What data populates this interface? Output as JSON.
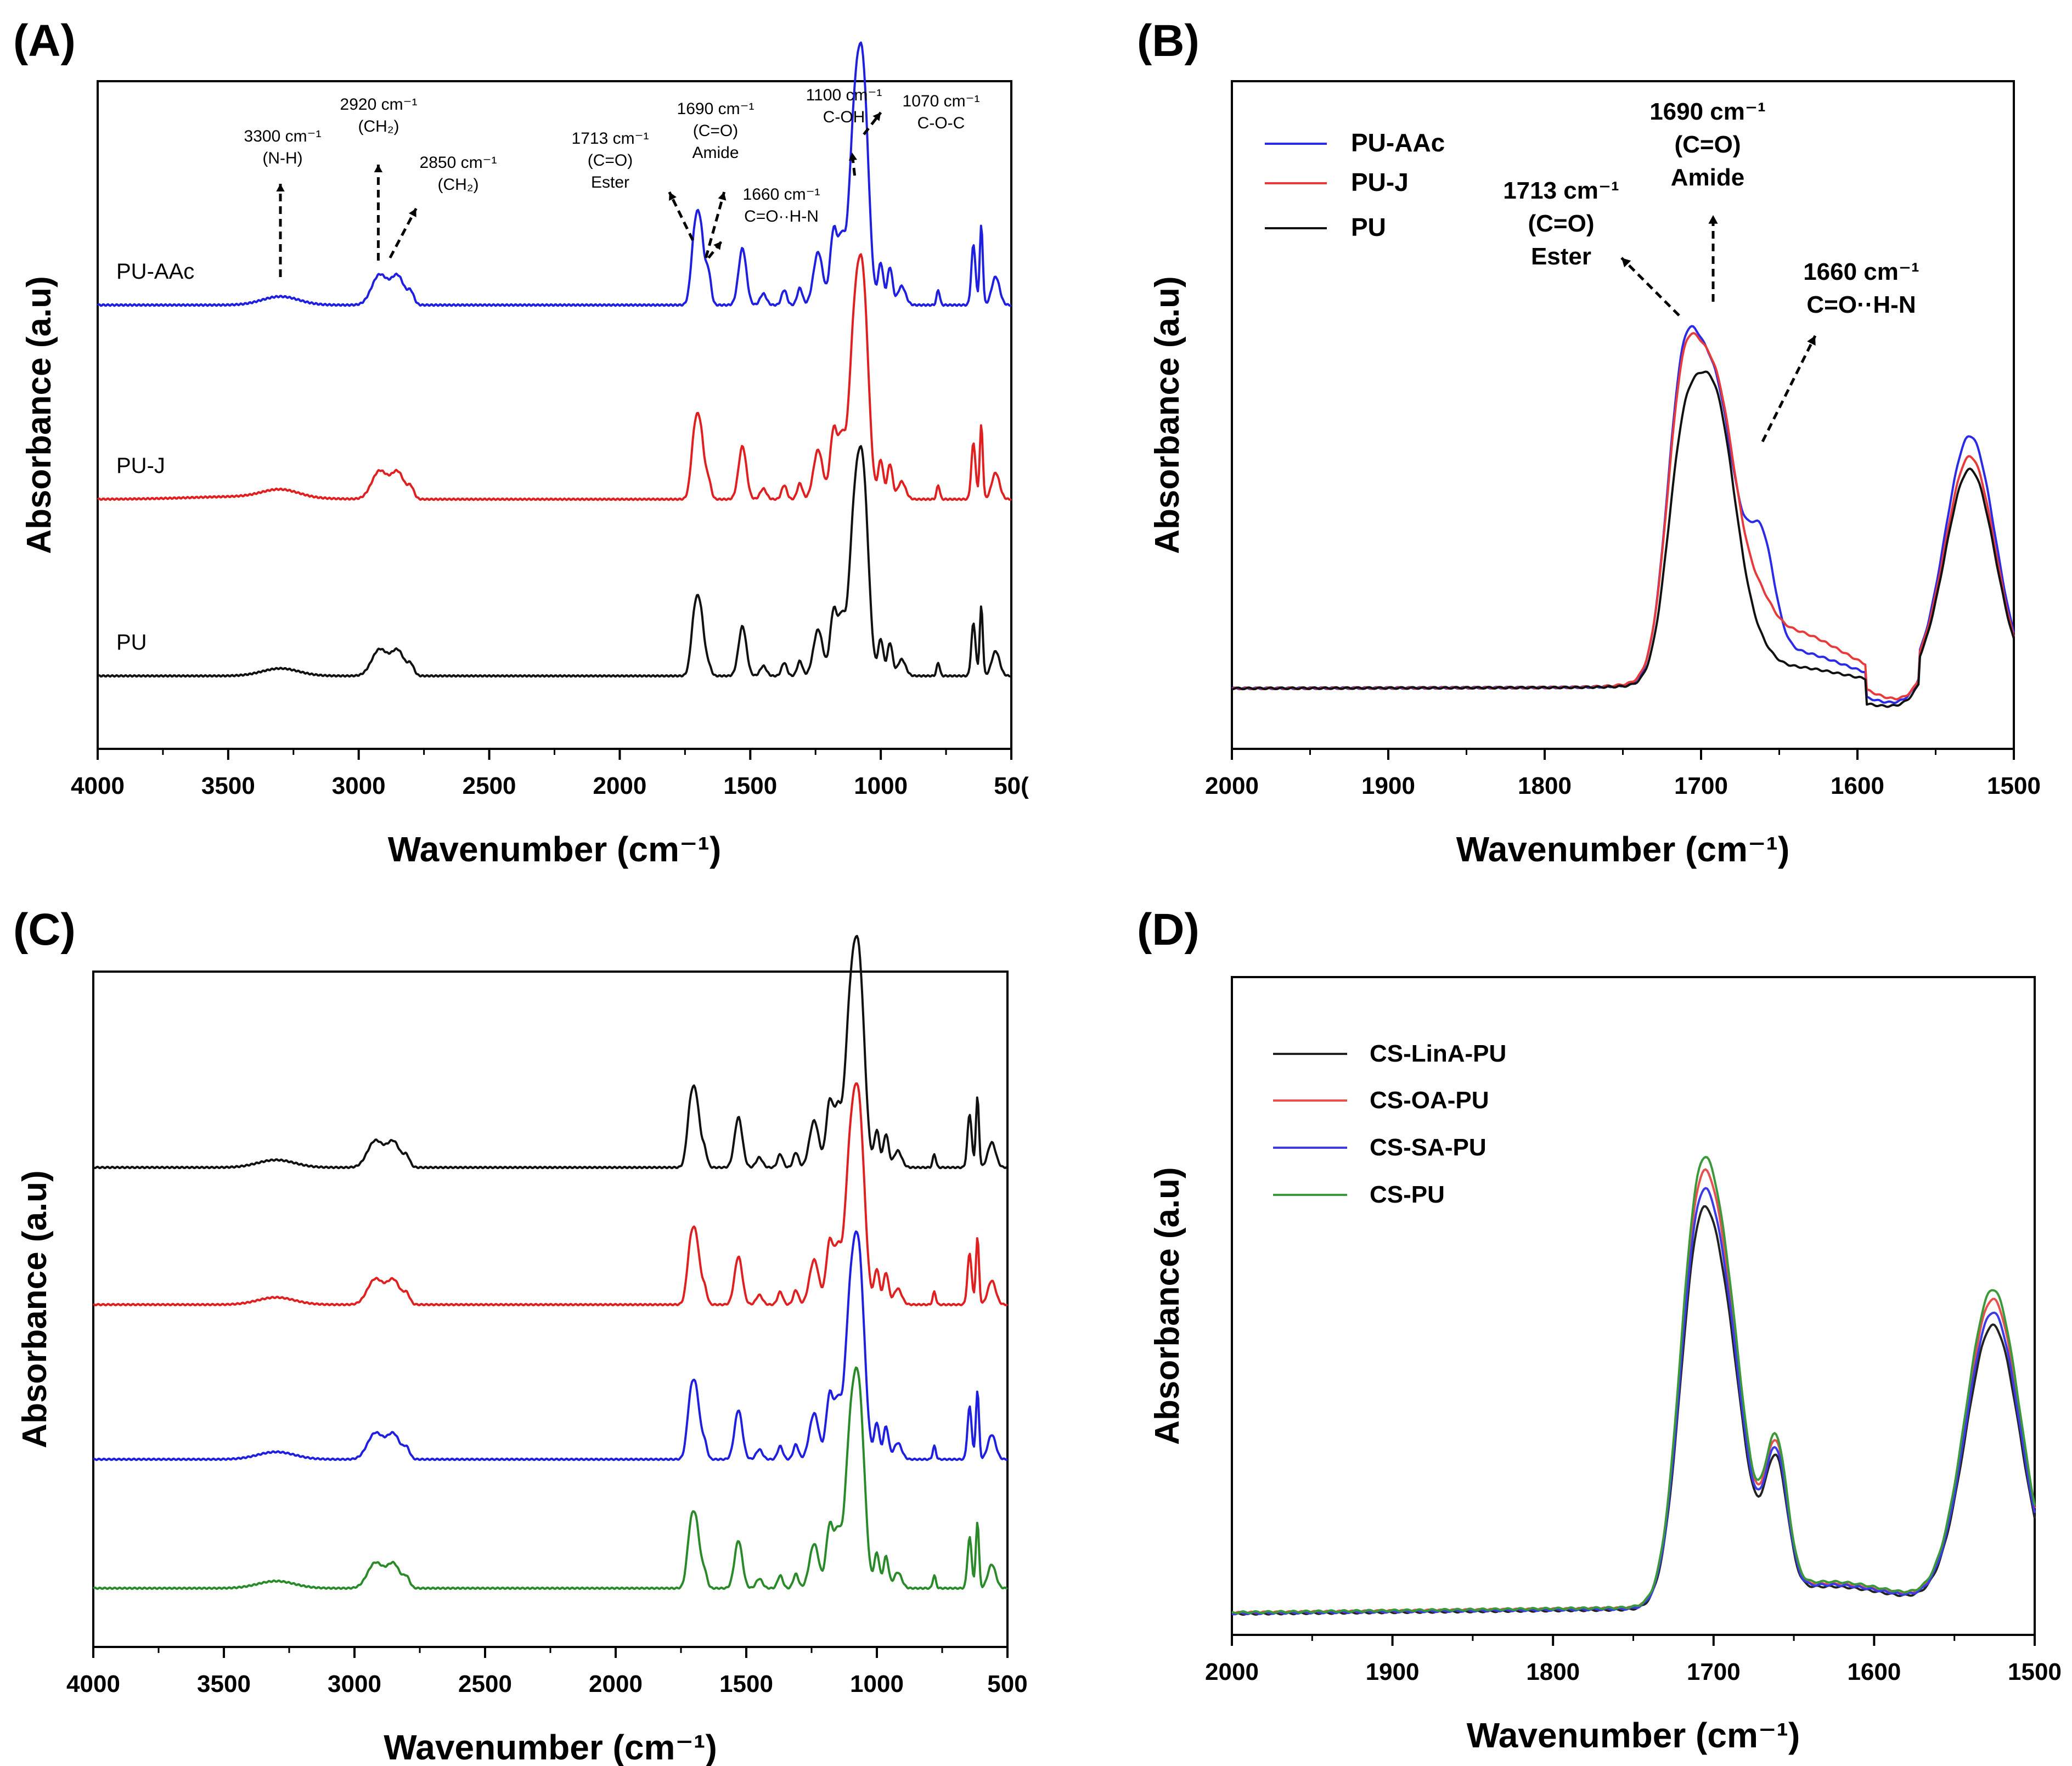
{
  "chart_data": [
    {
      "panel": "(A)",
      "type": "line",
      "xlabel": "Wavenumber (cm⁻¹)",
      "ylabel": "Absorbance (a.u)",
      "xlim": [
        4000,
        500
      ],
      "xticks": [
        "4000",
        "3500",
        "3000",
        "2500",
        "2000",
        "1500",
        "1000",
        "50("
      ],
      "series": [
        {
          "name": "PU-AAc",
          "color": "#1f1fe0",
          "offset": 2
        },
        {
          "name": "PU-J",
          "color": "#e02020",
          "offset": 1
        },
        {
          "name": "PU",
          "color": "#111111",
          "offset": 0
        }
      ],
      "annotations": [
        {
          "x": 3300,
          "lines": [
            "3300 cm⁻¹",
            "(N-H)"
          ]
        },
        {
          "x": 2920,
          "lines": [
            "2920 cm⁻¹",
            "(CH₂)"
          ]
        },
        {
          "x": 2850,
          "lines": [
            "2850 cm⁻¹",
            "(CH₂)"
          ]
        },
        {
          "x": 1713,
          "lines": [
            "1713 cm⁻¹",
            "(C=O)",
            "Ester"
          ]
        },
        {
          "x": 1690,
          "lines": [
            "1690 cm⁻¹",
            "(C=O)",
            "Amide"
          ]
        },
        {
          "x": 1660,
          "lines": [
            "1660 cm⁻¹",
            "C=O··H-N"
          ]
        },
        {
          "x": 1100,
          "lines": [
            "1100 cm⁻¹",
            "C-OH"
          ]
        },
        {
          "x": 1070,
          "lines": [
            "1070 cm⁻¹",
            "C-O-C"
          ]
        }
      ]
    },
    {
      "panel": "(B)",
      "type": "line",
      "xlabel": "Wavenumber (cm⁻¹)",
      "ylabel": "Absorbance (a.u)",
      "xlim": [
        2000,
        1500
      ],
      "xticks": [
        "2000",
        "1900",
        "1800",
        "1700",
        "1600",
        "1500"
      ],
      "legend": [
        "PU-AAc",
        "PU-J",
        "PU"
      ],
      "legend_position": "top-left",
      "series": [
        {
          "name": "PU-AAc",
          "color": "#2a2ae8"
        },
        {
          "name": "PU-J",
          "color": "#e83a3a"
        },
        {
          "name": "PU",
          "color": "#111111"
        }
      ],
      "annotations": [
        {
          "x": 1713,
          "lines": [
            "1713 cm⁻¹",
            "(C=O)",
            "Ester"
          ]
        },
        {
          "x": 1690,
          "lines": [
            "1690 cm⁻¹",
            "(C=O)",
            "Amide"
          ]
        },
        {
          "x": 1660,
          "lines": [
            "1660 cm⁻¹",
            "C=O··H-N"
          ]
        }
      ]
    },
    {
      "panel": "(C)",
      "type": "line",
      "xlabel": "Wavenumber (cm⁻¹)",
      "ylabel": "Absorbance (a.u)",
      "xlim": [
        4000,
        500
      ],
      "xticks": [
        "4000",
        "3500",
        "3000",
        "2500",
        "2000",
        "1500",
        "1000",
        "500"
      ],
      "series": [
        {
          "name": "CS-LinA-PU",
          "color": "#111111",
          "offset": 3
        },
        {
          "name": "CS-OA-PU",
          "color": "#e02020",
          "offset": 2
        },
        {
          "name": "CS-SA-PU",
          "color": "#1f1fe0",
          "offset": 1
        },
        {
          "name": "CS-PU",
          "color": "#2a8a2a",
          "offset": 0
        }
      ]
    },
    {
      "panel": "(D)",
      "type": "line",
      "xlabel": "Wavenumber (cm⁻¹)",
      "ylabel": "Absorbance (a.u)",
      "xlim": [
        2000,
        1500
      ],
      "xticks": [
        "2000",
        "1900",
        "1800",
        "1700",
        "1600",
        "1500"
      ],
      "legend": [
        "CS-LinA-PU",
        "CS-OA-PU",
        "CS-SA-PU",
        "CS-PU"
      ],
      "legend_position": "top-left",
      "series": [
        {
          "name": "CS-LinA-PU",
          "color": "#222222",
          "scale": 0.92
        },
        {
          "name": "CS-OA-PU",
          "color": "#e85050",
          "scale": 1.0
        },
        {
          "name": "CS-SA-PU",
          "color": "#3a3ae8",
          "scale": 0.96
        },
        {
          "name": "CS-PU",
          "color": "#3a9a3a",
          "scale": 1.03
        }
      ]
    }
  ]
}
